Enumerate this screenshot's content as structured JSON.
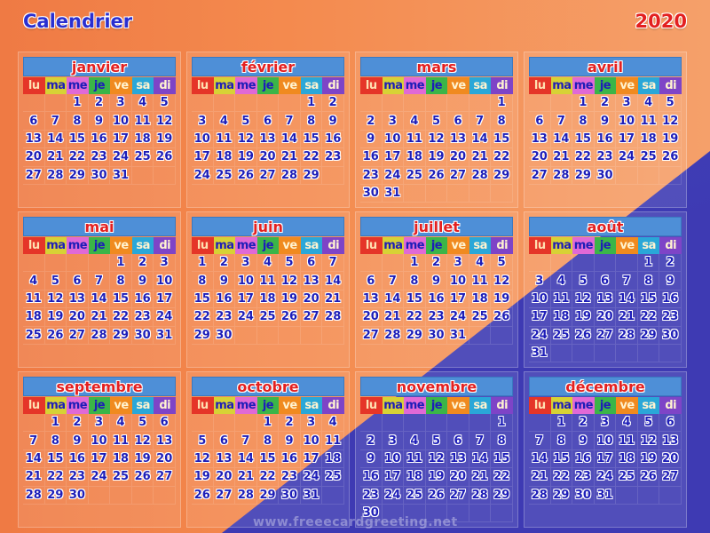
{
  "title": "Calendrier",
  "year": "2020",
  "weekdays": [
    "lu",
    "ma",
    "me",
    "je",
    "ve",
    "sa",
    "di"
  ],
  "months": [
    {
      "name": "janvier",
      "offset": 2,
      "days": 31
    },
    {
      "name": "février",
      "offset": 5,
      "days": 29
    },
    {
      "name": "mars",
      "offset": 6,
      "days": 31
    },
    {
      "name": "avril",
      "offset": 2,
      "days": 30
    },
    {
      "name": "mai",
      "offset": 4,
      "days": 31
    },
    {
      "name": "juin",
      "offset": 0,
      "days": 30
    },
    {
      "name": "juillet",
      "offset": 2,
      "days": 31
    },
    {
      "name": "août",
      "offset": 5,
      "days": 31
    },
    {
      "name": "septembre",
      "offset": 1,
      "days": 30
    },
    {
      "name": "octobre",
      "offset": 3,
      "days": 31
    },
    {
      "name": "novembre",
      "offset": 6,
      "days": 30
    },
    {
      "name": "décembre",
      "offset": 1,
      "days": 31
    }
  ],
  "watermark": "www.freeecardgreeting.net",
  "colors": {
    "blue_wedge": "#3e3ab3",
    "orange_bg": "#ef7a44",
    "month_header": "#4e8fd7"
  }
}
